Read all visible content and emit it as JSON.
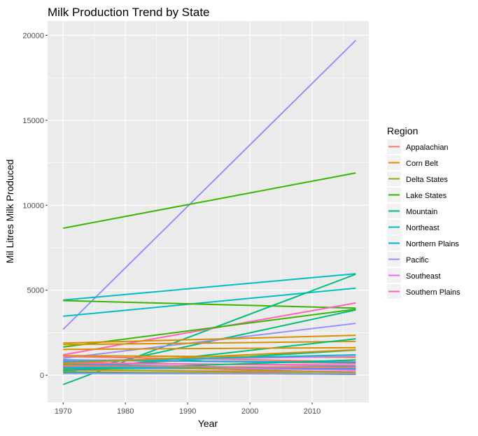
{
  "chart_data": {
    "type": "line",
    "title": "Milk Production Trend by State",
    "xlabel": "Year",
    "ylabel": "Mil Litres Milk Produced",
    "xlim": [
      1967.5,
      2019.1
    ],
    "ylim": [
      -1600,
      20840
    ],
    "x_ticks": [
      1970,
      1980,
      1990,
      2000,
      2010
    ],
    "y_ticks": [
      0,
      5000,
      10000,
      15000,
      20000
    ],
    "grid": true,
    "legend": {
      "title": "Region",
      "placement": "right"
    },
    "regions": [
      {
        "name": "Appalachian",
        "color": "#F8766D"
      },
      {
        "name": "Corn Belt",
        "color": "#D89000"
      },
      {
        "name": "Delta States",
        "color": "#A3A500"
      },
      {
        "name": "Lake States",
        "color": "#39B600"
      },
      {
        "name": "Mountain",
        "color": "#00BF7D"
      },
      {
        "name": "Northeast",
        "color": "#00BFC4"
      },
      {
        "name": "Northern Plains",
        "color": "#00B0F6"
      },
      {
        "name": "Pacific",
        "color": "#9590FF"
      },
      {
        "name": "Southeast",
        "color": "#E76BF3"
      },
      {
        "name": "Southern Plains",
        "color": "#FF62BC"
      }
    ],
    "x_range": [
      1970,
      2017
    ],
    "series": [
      {
        "region": "Pacific",
        "values": [
          2700,
          19700
        ]
      },
      {
        "region": "Lake States",
        "values": [
          8650,
          11900
        ]
      },
      {
        "region": "Northeast",
        "values": [
          4420,
          5970
        ]
      },
      {
        "region": "Northeast",
        "values": [
          3470,
          5120
        ]
      },
      {
        "region": "Lake States",
        "values": [
          4390,
          3950
        ]
      },
      {
        "region": "Mountain",
        "values": [
          -550,
          5940
        ]
      },
      {
        "region": "Southern Plains",
        "values": [
          1200,
          4250
        ]
      },
      {
        "region": "Lake States",
        "values": [
          1660,
          3880
        ]
      },
      {
        "region": "Mountain",
        "values": [
          120,
          3840
        ]
      },
      {
        "region": "Pacific",
        "values": [
          1000,
          3050
        ]
      },
      {
        "region": "Corn Belt",
        "values": [
          1890,
          2350
        ]
      },
      {
        "region": "Corn Belt",
        "values": [
          1800,
          1990
        ]
      },
      {
        "region": "Mountain",
        "values": [
          250,
          2140
        ]
      },
      {
        "region": "Corn Belt",
        "values": [
          1520,
          1620
        ]
      },
      {
        "region": "Mountain",
        "values": [
          450,
          1480
        ]
      },
      {
        "region": "Corn Belt",
        "values": [
          1150,
          1050
        ]
      },
      {
        "region": "Appalachian",
        "values": [
          1100,
          800
        ]
      },
      {
        "region": "Appalachian",
        "values": [
          900,
          700
        ]
      },
      {
        "region": "Appalachian",
        "values": [
          750,
          550
        ]
      },
      {
        "region": "Northern Plains",
        "values": [
          900,
          750
        ]
      },
      {
        "region": "Northern Plains",
        "values": [
          650,
          350
        ]
      },
      {
        "region": "Northern Plains",
        "values": [
          400,
          380
        ]
      },
      {
        "region": "Southeast",
        "values": [
          850,
          1100
        ]
      },
      {
        "region": "Southeast",
        "values": [
          500,
          300
        ]
      },
      {
        "region": "Southern Plains",
        "values": [
          700,
          600
        ]
      },
      {
        "region": "Southern Plains",
        "values": [
          300,
          200
        ]
      },
      {
        "region": "Delta States",
        "values": [
          600,
          150
        ]
      },
      {
        "region": "Delta States",
        "values": [
          350,
          80
        ]
      },
      {
        "region": "Delta States",
        "values": [
          200,
          50
        ]
      },
      {
        "region": "Mountain",
        "values": [
          150,
          50
        ]
      },
      {
        "region": "Mountain",
        "values": [
          300,
          900
        ]
      },
      {
        "region": "Northeast",
        "values": [
          800,
          1200
        ]
      },
      {
        "region": "Northeast",
        "values": [
          450,
          500
        ]
      },
      {
        "region": "Pacific",
        "values": [
          100,
          80
        ]
      },
      {
        "region": "Appalachian",
        "values": [
          550,
          450
        ]
      },
      {
        "region": "Corn Belt",
        "values": [
          700,
          1500
        ]
      }
    ]
  }
}
